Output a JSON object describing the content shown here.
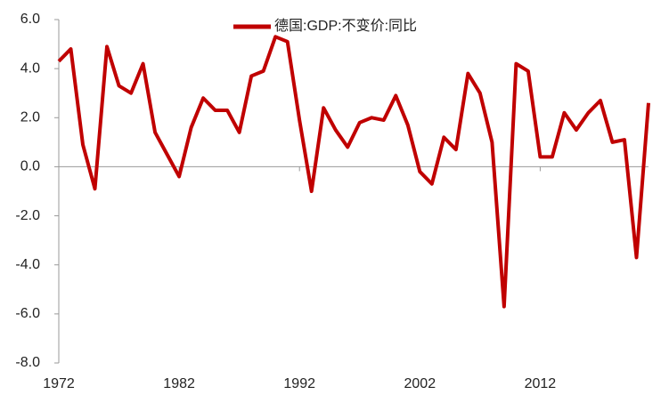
{
  "chart_data": {
    "type": "line",
    "x": [
      1972,
      1973,
      1974,
      1975,
      1976,
      1977,
      1978,
      1979,
      1980,
      1981,
      1982,
      1983,
      1984,
      1985,
      1986,
      1987,
      1988,
      1989,
      1990,
      1991,
      1992,
      1993,
      1994,
      1995,
      1996,
      1997,
      1998,
      1999,
      2000,
      2001,
      2002,
      2003,
      2004,
      2005,
      2006,
      2007,
      2008,
      2009,
      2010,
      2011,
      2012,
      2013,
      2014,
      2015,
      2016,
      2017,
      2018,
      2019,
      2020,
      2021
    ],
    "series": [
      {
        "name": "德国:GDP:不变价:同比",
        "color": "#c00000",
        "values": [
          4.3,
          4.8,
          0.9,
          -0.9,
          4.9,
          3.3,
          3.0,
          4.2,
          1.4,
          0.5,
          -0.4,
          1.6,
          2.8,
          2.3,
          2.3,
          1.4,
          3.7,
          3.9,
          5.3,
          5.1,
          1.9,
          -1.0,
          2.4,
          1.5,
          0.8,
          1.8,
          2.0,
          1.9,
          2.9,
          1.7,
          -0.2,
          -0.7,
          1.2,
          0.7,
          3.8,
          3.0,
          1.0,
          -5.7,
          4.2,
          3.9,
          0.4,
          0.4,
          2.2,
          1.5,
          2.2,
          2.7,
          1.0,
          1.1,
          -3.7,
          2.6
        ]
      }
    ],
    "xlim": [
      1972,
      2021
    ],
    "xticks": [
      1972,
      1982,
      1992,
      2002,
      2012
    ],
    "ylim": [
      -8,
      6
    ],
    "yticks": [
      {
        "value": -8,
        "label": "-8.0"
      },
      {
        "value": -6,
        "label": "-6.0"
      },
      {
        "value": -4,
        "label": "-4.0"
      },
      {
        "value": -2,
        "label": "-2.0"
      },
      {
        "value": 0,
        "label": "0.0"
      },
      {
        "value": 2,
        "label": "2.0"
      },
      {
        "value": 4,
        "label": "4.0"
      },
      {
        "value": 6,
        "label": "6.0"
      }
    ],
    "legend": "top"
  }
}
